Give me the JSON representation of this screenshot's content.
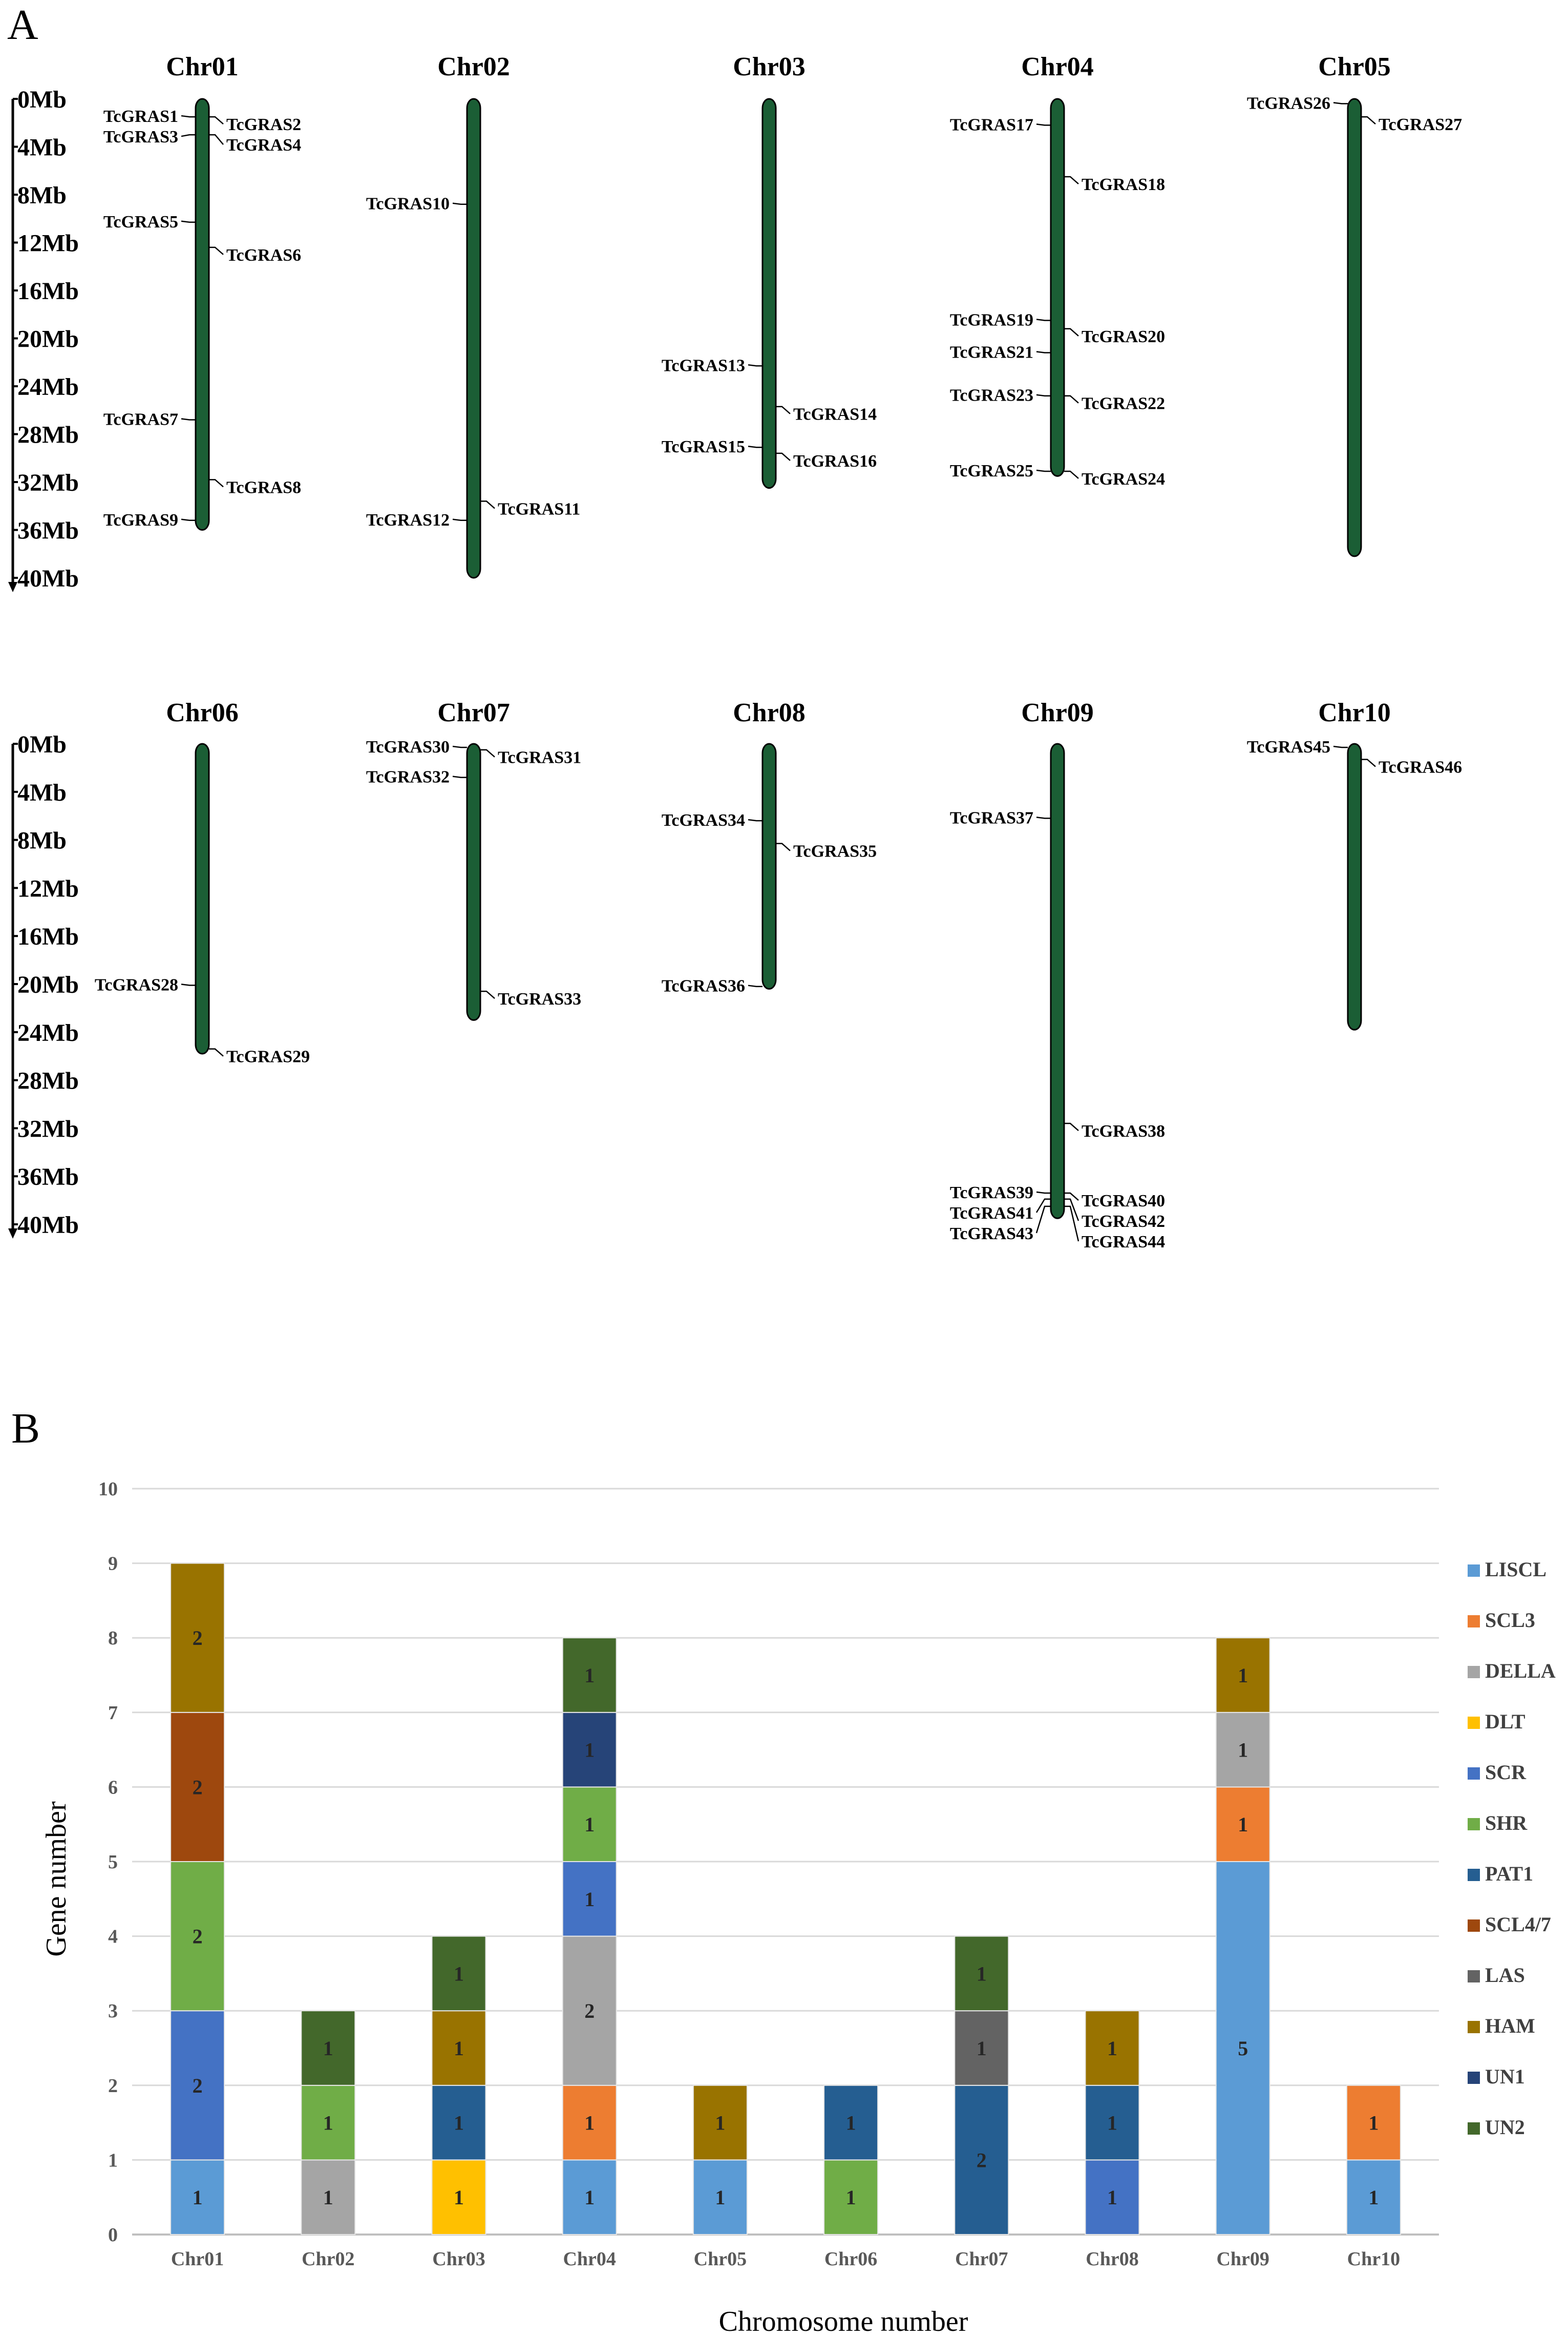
{
  "panel_a": {
    "letter": "A",
    "scale_labels": [
      "0Mb",
      "4Mb",
      "8Mb",
      "12Mb",
      "16Mb",
      "20Mb",
      "24Mb",
      "28Mb",
      "32Mb",
      "36Mb",
      "40Mb"
    ],
    "chromosome_color": "#1b5e35",
    "chromosomes": [
      {
        "name": "Chr01",
        "length_mb": 36.0,
        "genes": [
          {
            "id": "TcGRAS1",
            "pos_mb": 1.5,
            "side": "left"
          },
          {
            "id": "TcGRAS2",
            "pos_mb": 1.5,
            "side": "right"
          },
          {
            "id": "TcGRAS3",
            "pos_mb": 3.0,
            "side": "left"
          },
          {
            "id": "TcGRAS4",
            "pos_mb": 3.0,
            "side": "right"
          },
          {
            "id": "TcGRAS5",
            "pos_mb": 10.3,
            "side": "left"
          },
          {
            "id": "TcGRAS6",
            "pos_mb": 12.4,
            "side": "right"
          },
          {
            "id": "TcGRAS7",
            "pos_mb": 26.8,
            "side": "left"
          },
          {
            "id": "TcGRAS8",
            "pos_mb": 31.8,
            "side": "right"
          },
          {
            "id": "TcGRAS9",
            "pos_mb": 35.2,
            "side": "left"
          }
        ]
      },
      {
        "name": "Chr02",
        "length_mb": 40.0,
        "genes": [
          {
            "id": "TcGRAS10",
            "pos_mb": 8.8,
            "side": "left"
          },
          {
            "id": "TcGRAS11",
            "pos_mb": 33.6,
            "side": "right"
          },
          {
            "id": "TcGRAS12",
            "pos_mb": 35.2,
            "side": "left"
          }
        ]
      },
      {
        "name": "Chr03",
        "length_mb": 32.5,
        "genes": [
          {
            "id": "TcGRAS13",
            "pos_mb": 22.3,
            "side": "left"
          },
          {
            "id": "TcGRAS14",
            "pos_mb": 25.7,
            "side": "right"
          },
          {
            "id": "TcGRAS15",
            "pos_mb": 29.1,
            "side": "left"
          },
          {
            "id": "TcGRAS16",
            "pos_mb": 29.6,
            "side": "right"
          }
        ]
      },
      {
        "name": "Chr04",
        "length_mb": 31.5,
        "genes": [
          {
            "id": "TcGRAS17",
            "pos_mb": 2.2,
            "side": "left"
          },
          {
            "id": "TcGRAS18",
            "pos_mb": 6.5,
            "side": "right"
          },
          {
            "id": "TcGRAS19",
            "pos_mb": 18.5,
            "side": "left"
          },
          {
            "id": "TcGRAS20",
            "pos_mb": 19.2,
            "side": "right"
          },
          {
            "id": "TcGRAS21",
            "pos_mb": 21.2,
            "side": "left"
          },
          {
            "id": "TcGRAS23",
            "pos_mb": 24.8,
            "side": "left"
          },
          {
            "id": "TcGRAS22",
            "pos_mb": 24.8,
            "side": "right"
          },
          {
            "id": "TcGRAS25",
            "pos_mb": 31.1,
            "side": "left"
          },
          {
            "id": "TcGRAS24",
            "pos_mb": 31.1,
            "side": "right"
          }
        ]
      },
      {
        "name": "Chr05",
        "length_mb": 38.2,
        "genes": [
          {
            "id": "TcGRAS26",
            "pos_mb": 0.4,
            "side": "left"
          },
          {
            "id": "TcGRAS27",
            "pos_mb": 1.5,
            "side": "right"
          }
        ]
      },
      {
        "name": "Chr06",
        "length_mb": 25.8,
        "genes": [
          {
            "id": "TcGRAS28",
            "pos_mb": 20.1,
            "side": "left"
          },
          {
            "id": "TcGRAS29",
            "pos_mb": 25.4,
            "side": "right"
          }
        ]
      },
      {
        "name": "Chr07",
        "length_mb": 23.0,
        "genes": [
          {
            "id": "TcGRAS30",
            "pos_mb": 0.3,
            "side": "left"
          },
          {
            "id": "TcGRAS31",
            "pos_mb": 0.5,
            "side": "right"
          },
          {
            "id": "TcGRAS32",
            "pos_mb": 2.8,
            "side": "left"
          },
          {
            "id": "TcGRAS33",
            "pos_mb": 20.6,
            "side": "right"
          }
        ]
      },
      {
        "name": "Chr08",
        "length_mb": 20.4,
        "genes": [
          {
            "id": "TcGRAS34",
            "pos_mb": 6.4,
            "side": "left"
          },
          {
            "id": "TcGRAS35",
            "pos_mb": 8.3,
            "side": "right"
          },
          {
            "id": "TcGRAS36",
            "pos_mb": 20.2,
            "side": "left"
          }
        ]
      },
      {
        "name": "Chr09",
        "length_mb": 39.5,
        "genes": [
          {
            "id": "TcGRAS37",
            "pos_mb": 6.2,
            "side": "left"
          },
          {
            "id": "TcGRAS38",
            "pos_mb": 31.6,
            "side": "right"
          },
          {
            "id": "TcGRAS39",
            "pos_mb": 37.4,
            "side": "left"
          },
          {
            "id": "TcGRAS40",
            "pos_mb": 37.4,
            "side": "right"
          },
          {
            "id": "TcGRAS41",
            "pos_mb": 37.9,
            "side": "left"
          },
          {
            "id": "TcGRAS42",
            "pos_mb": 37.9,
            "side": "right"
          },
          {
            "id": "TcGRAS43",
            "pos_mb": 38.5,
            "side": "left"
          },
          {
            "id": "TcGRAS44",
            "pos_mb": 38.5,
            "side": "right"
          }
        ]
      },
      {
        "name": "Chr10",
        "length_mb": 23.8,
        "genes": [
          {
            "id": "TcGRAS45",
            "pos_mb": 0.3,
            "side": "left"
          },
          {
            "id": "TcGRAS46",
            "pos_mb": 1.3,
            "side": "right"
          }
        ]
      }
    ]
  },
  "panel_b": {
    "letter": "B"
  },
  "chart_data": {
    "type": "bar",
    "stacked": true,
    "title": "",
    "xlabel": "Chromosome number",
    "ylabel": "Gene number",
    "ylim": [
      0,
      10
    ],
    "yticks": [
      "0",
      "1",
      "2",
      "3",
      "4",
      "5",
      "6",
      "7",
      "8",
      "9",
      "10"
    ],
    "grid": true,
    "legend_position": "right",
    "categories": [
      "Chr01",
      "Chr02",
      "Chr03",
      "Chr04",
      "Chr05",
      "Chr06",
      "Chr07",
      "Chr08",
      "Chr09",
      "Chr10"
    ],
    "series": [
      {
        "name": "LISCL",
        "color": "#5b9bd5",
        "values": [
          1,
          0,
          0,
          1,
          1,
          0,
          0,
          0,
          5,
          1
        ]
      },
      {
        "name": "SCL3",
        "color": "#ed7d31",
        "values": [
          0,
          0,
          0,
          1,
          0,
          0,
          0,
          0,
          1,
          1
        ]
      },
      {
        "name": "DELLA",
        "color": "#a5a5a5",
        "values": [
          0,
          1,
          0,
          2,
          0,
          0,
          0,
          0,
          1,
          0
        ]
      },
      {
        "name": "DLT",
        "color": "#ffc000",
        "values": [
          0,
          0,
          1,
          0,
          0,
          0,
          0,
          0,
          0,
          0
        ]
      },
      {
        "name": "SCR",
        "color": "#4472c4",
        "values": [
          2,
          0,
          0,
          1,
          0,
          0,
          0,
          1,
          0,
          0
        ]
      },
      {
        "name": "SHR",
        "color": "#70ad47",
        "values": [
          2,
          1,
          0,
          1,
          0,
          1,
          0,
          0,
          0,
          0
        ]
      },
      {
        "name": "PAT1",
        "color": "#255e91",
        "values": [
          0,
          0,
          1,
          0,
          0,
          1,
          2,
          1,
          0,
          0
        ]
      },
      {
        "name": "SCL4/7",
        "color": "#9e480e",
        "values": [
          2,
          0,
          0,
          0,
          0,
          0,
          0,
          0,
          0,
          0
        ]
      },
      {
        "name": "LAS",
        "color": "#636363",
        "values": [
          0,
          0,
          0,
          0,
          0,
          0,
          1,
          0,
          0,
          0
        ]
      },
      {
        "name": "HAM",
        "color": "#997300",
        "values": [
          2,
          0,
          1,
          0,
          1,
          0,
          0,
          1,
          1,
          0
        ]
      },
      {
        "name": "UN1",
        "color": "#264478",
        "values": [
          0,
          0,
          0,
          1,
          0,
          0,
          0,
          0,
          0,
          0
        ]
      },
      {
        "name": "UN2",
        "color": "#43682b",
        "values": [
          0,
          1,
          1,
          1,
          0,
          0,
          1,
          0,
          0,
          0
        ]
      }
    ]
  }
}
